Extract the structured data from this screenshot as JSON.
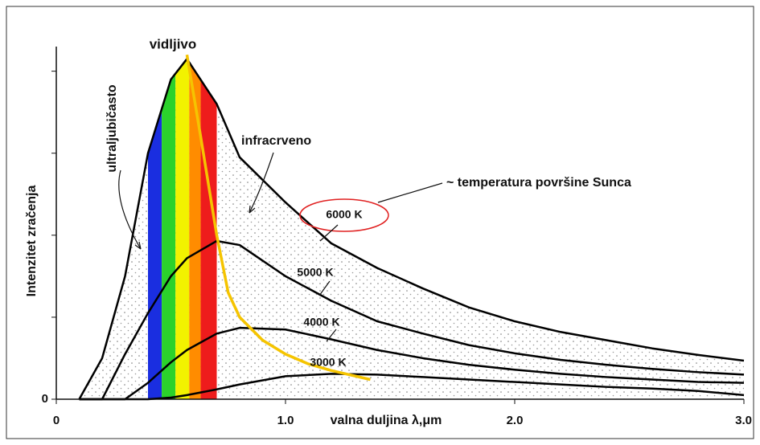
{
  "chart_data": {
    "type": "line",
    "x_label": "valna duljina λ,μm",
    "y_label": "Intenzitet zračenja",
    "xlim": [
      0,
      3.0
    ],
    "xticks": [
      0,
      {
        "value": 1.0,
        "label": "1.0"
      },
      {
        "value": 2.0,
        "label": "2.0"
      },
      {
        "value": 3.0,
        "label": "3.0"
      }
    ],
    "ylim": [
      0,
      4.3
    ],
    "yticks": [
      0
    ],
    "yminor_ticks": [
      1,
      2,
      3,
      4
    ],
    "x": [
      0.1,
      0.2,
      0.3,
      0.4,
      0.5,
      0.57,
      0.7,
      0.8,
      1.0,
      1.2,
      1.4,
      1.6,
      1.8,
      2.0,
      2.2,
      2.4,
      2.6,
      2.8,
      3.0
    ],
    "series": [
      {
        "name": "6000 K",
        "color": "#000000",
        "values": [
          0,
          0.5,
          1.5,
          3.0,
          3.9,
          4.15,
          3.6,
          2.95,
          2.4,
          1.9,
          1.6,
          1.35,
          1.12,
          0.95,
          0.82,
          0.72,
          0.62,
          0.54,
          0.47
        ]
      },
      {
        "name": "5000 K",
        "color": "#000000",
        "values": [
          0,
          0,
          0.55,
          1.05,
          1.5,
          1.72,
          1.93,
          1.88,
          1.5,
          1.2,
          0.95,
          0.8,
          0.66,
          0.56,
          0.48,
          0.42,
          0.37,
          0.33,
          0.3
        ]
      },
      {
        "name": "4000 K",
        "color": "#000000",
        "values": [
          0,
          0,
          0,
          0.2,
          0.45,
          0.6,
          0.8,
          0.87,
          0.85,
          0.73,
          0.6,
          0.5,
          0.42,
          0.36,
          0.31,
          0.27,
          0.24,
          0.21,
          0.2
        ]
      },
      {
        "name": "3000 K",
        "color": "#000000",
        "values": [
          0,
          0,
          0,
          0,
          0.02,
          0.05,
          0.12,
          0.18,
          0.28,
          0.31,
          0.3,
          0.27,
          0.24,
          0.21,
          0.18,
          0.15,
          0.13,
          0.1,
          0.05
        ]
      }
    ],
    "peak_curve": {
      "color": "#f5c400",
      "x": [
        0.57,
        0.63,
        0.7,
        0.75,
        0.8,
        0.9,
        1.0,
        1.1,
        1.2,
        1.37
      ],
      "values": [
        4.2,
        3.2,
        2.0,
        1.3,
        1.0,
        0.72,
        0.55,
        0.43,
        0.35,
        0.24
      ]
    },
    "bands": [
      {
        "color": "#1a2ee0",
        "from": 0.4,
        "to": 0.46
      },
      {
        "color": "#2bd22b",
        "from": 0.46,
        "to": 0.52
      },
      {
        "color": "#f2f200",
        "from": 0.52,
        "to": 0.58
      },
      {
        "color": "#ff8c00",
        "from": 0.58,
        "to": 0.63
      },
      {
        "color": "#ee1c1c",
        "from": 0.63,
        "to": 0.7
      }
    ],
    "annotations": {
      "visible": "vidljivo",
      "uv": "ultraljubičasto",
      "ir": "infracrveno",
      "sun": "~ temperatura površine Sunca"
    }
  }
}
